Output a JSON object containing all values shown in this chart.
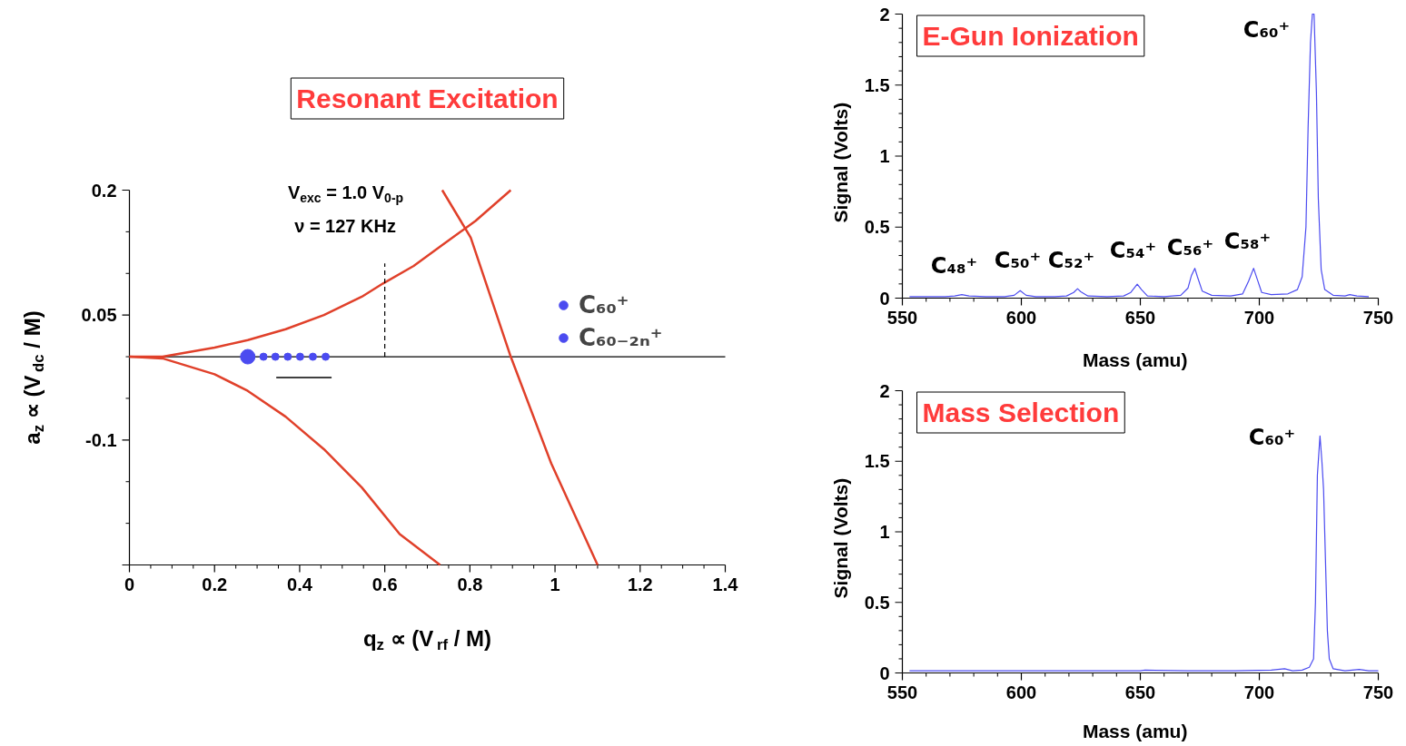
{
  "chart_data": [
    {
      "type": "line",
      "title": "Resonant Excitation",
      "xlabel": "q$_{z}$ ∝  (V$_{rf}$ / M)",
      "ylabel": "a$_{z}$ ∝  (V$_{dc}$ / M)",
      "xlim": [
        0,
        1.4
      ],
      "ylim": [
        -0.25,
        0.2
      ],
      "xticks": [
        0,
        0.2,
        0.4,
        0.6,
        0.8,
        1,
        1.2,
        1.4
      ],
      "yticks": [
        {
          "value": -0.25,
          "label": null
        },
        -0.1,
        0.05,
        0.2
      ],
      "grid": false,
      "legend": "right",
      "ref_lines": [
        {
          "axis": "y",
          "value": 0,
          "color": "#000000"
        }
      ],
      "annotations": [
        "V$_{exc}$ = 1.0 V$_{0-p}$",
        "ν = 127 KHz"
      ],
      "series": [
        {
          "color": "#e0402a",
          "x": [
            0,
            0.078,
            0.2,
            0.278,
            0.367,
            0.457,
            0.546,
            0.596,
            0.668,
            0.735,
            0.813,
            0.896
          ],
          "values": [
            0,
            0,
            0.011,
            0.02,
            0.033,
            0.05,
            0.072,
            0.088,
            0.109,
            0.134,
            0.163,
            0.2
          ]
        },
        {
          "color": "#e0402a",
          "x": [
            0,
            0.078,
            0.2,
            0.278,
            0.367,
            0.457,
            0.546,
            0.635,
            0.73
          ],
          "values": [
            0,
            -0.002,
            -0.021,
            -0.041,
            -0.072,
            -0.111,
            -0.157,
            -0.213,
            -0.25
          ]
        },
        {
          "color": "#e0402a",
          "x": [
            0.735,
            0.802,
            0.896,
            0.991,
            1.1
          ],
          "values": [
            0.2,
            0.143,
            0,
            -0.128,
            -0.25
          ]
        },
        {
          "color": "#000000",
          "line_style": "dashed",
          "x": [
            0.6,
            0.6
          ],
          "values": [
            0,
            0.112
          ]
        },
        {
          "color": "#000000",
          "x": [
            0.345,
            0.475
          ],
          "values": [
            -0.025,
            -0.025
          ]
        },
        {
          "type": "scatter",
          "name": "C₆₀⁺",
          "color": "#4b4bf0",
          "x": [
            0.278
          ],
          "values": [
            0
          ]
        },
        {
          "type": "scatter",
          "name": "C₆₀₋₂ₙ⁺",
          "color": "#4b4bf0",
          "x": [
            0.315,
            0.343,
            0.372,
            0.401,
            0.431,
            0.461
          ],
          "values": [
            0,
            0,
            0,
            0,
            0,
            0
          ]
        }
      ]
    },
    {
      "type": "line",
      "title": "E-Gun Ionization",
      "xlabel": "Mass   (amu)",
      "ylabel": "Signal   (Volts)",
      "xlim": [
        550,
        750
      ],
      "ylim": [
        0,
        2
      ],
      "xticks": [
        550,
        600,
        650,
        700,
        750
      ],
      "yticks": [
        0,
        0.5,
        1,
        1.5,
        2
      ],
      "grid": false,
      "annotations": [
        "C₄₈⁺",
        "C₅₀⁺",
        "C₅₂⁺",
        "C₅₄⁺",
        "C₅₆⁺",
        "C₅₈⁺",
        "C₆₀⁺"
      ],
      "series": [
        {
          "color": "#4b4bf0",
          "x": [
            553,
            560,
            568,
            572,
            575,
            578,
            585,
            593,
            597,
            599.5,
            602,
            606,
            614,
            619,
            622,
            623.6,
            625,
            628,
            636,
            643,
            646,
            648.7,
            650.5,
            653,
            660,
            667,
            670,
            671.5,
            672.9,
            674,
            676,
            680,
            688,
            693,
            695.5,
            697.6,
            699,
            701,
            705,
            712,
            716,
            718,
            719.6,
            720.5,
            721.5,
            722.3,
            723,
            724,
            724.8,
            726,
            727.5,
            731,
            736,
            738,
            741,
            746
          ],
          "values": [
            0.01,
            0.01,
            0.01,
            0.015,
            0.025,
            0.015,
            0.01,
            0.01,
            0.02,
            0.053,
            0.02,
            0.01,
            0.01,
            0.015,
            0.04,
            0.066,
            0.045,
            0.015,
            0.01,
            0.015,
            0.04,
            0.098,
            0.06,
            0.015,
            0.01,
            0.02,
            0.07,
            0.16,
            0.21,
            0.15,
            0.05,
            0.02,
            0.015,
            0.03,
            0.12,
            0.21,
            0.14,
            0.04,
            0.025,
            0.03,
            0.06,
            0.15,
            0.5,
            1.2,
            1.8,
            2.0,
            2.0,
            1.45,
            0.7,
            0.2,
            0.06,
            0.02,
            0.015,
            0.025,
            0.015,
            0.01
          ]
        }
      ]
    },
    {
      "type": "line",
      "title": "Mass Selection",
      "xlabel": "Mass   (amu)",
      "ylabel": "Signal   (Volts)",
      "xlim": [
        550,
        750
      ],
      "ylim": [
        0,
        2
      ],
      "xticks": [
        550,
        600,
        650,
        700,
        750
      ],
      "yticks": [
        0,
        0.5,
        1,
        1.5,
        2
      ],
      "grid": false,
      "annotations": [
        "C₆₀⁺"
      ],
      "series": [
        {
          "color": "#4b4bf0",
          "x": [
            553,
            570,
            590,
            610,
            630,
            650,
            652,
            670,
            690,
            705,
            710.6,
            714,
            718,
            721,
            722.8,
            723.6,
            724.4,
            725.5,
            726.3,
            727,
            727.8,
            728.6,
            729.4,
            731,
            736,
            742,
            746,
            750
          ],
          "values": [
            0.015,
            0.015,
            0.015,
            0.015,
            0.015,
            0.015,
            0.02,
            0.015,
            0.015,
            0.02,
            0.03,
            0.015,
            0.02,
            0.04,
            0.1,
            0.5,
            1.4,
            1.68,
            1.5,
            1.3,
            0.8,
            0.3,
            0.1,
            0.03,
            0.015,
            0.025,
            0.015,
            0.015
          ]
        }
      ]
    }
  ]
}
